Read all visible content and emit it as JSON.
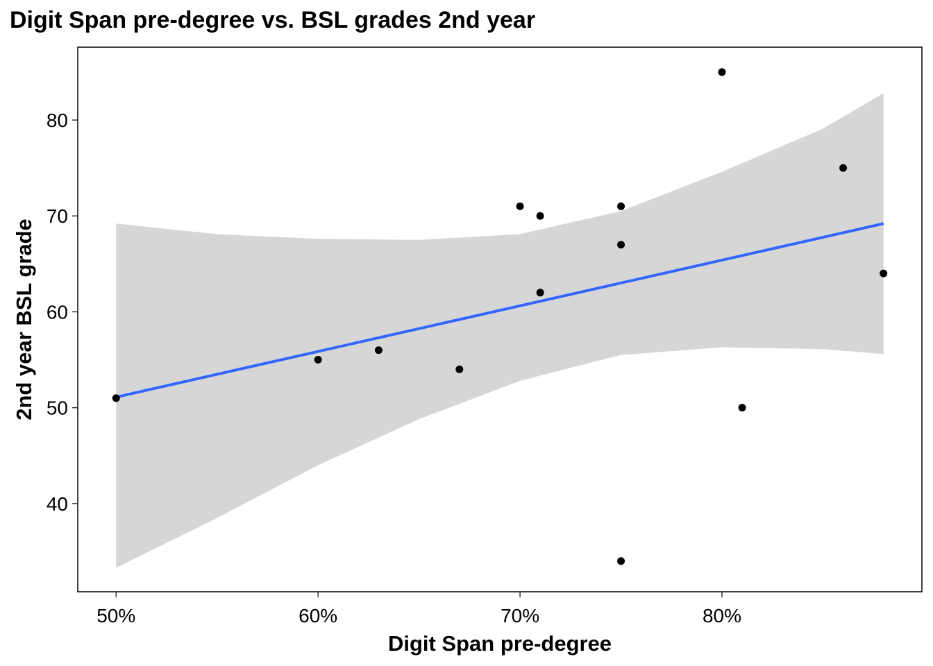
{
  "chart_data": {
    "type": "scatter",
    "title": "Digit Span pre-degree vs. BSL grades 2nd year",
    "xlabel": "Digit Span pre-degree",
    "ylabel": "2nd year BSL grade",
    "xlim": [
      0.481,
      0.899
    ],
    "ylim": [
      30.8,
      87.6
    ],
    "x_ticks": [
      0.5,
      0.6,
      0.7,
      0.8
    ],
    "x_tick_labels": [
      "50%",
      "60%",
      "70%",
      "80%"
    ],
    "y_ticks": [
      40,
      50,
      60,
      70,
      80
    ],
    "y_tick_labels": [
      "40",
      "50",
      "60",
      "70",
      "80"
    ],
    "grid": false,
    "point_color": "#000000",
    "line_color": "#3366FF",
    "band_color": "#D6D6D6",
    "points": [
      {
        "x": 0.5,
        "y": 51
      },
      {
        "x": 0.6,
        "y": 55
      },
      {
        "x": 0.63,
        "y": 56
      },
      {
        "x": 0.67,
        "y": 54
      },
      {
        "x": 0.7,
        "y": 71
      },
      {
        "x": 0.71,
        "y": 70
      },
      {
        "x": 0.71,
        "y": 62
      },
      {
        "x": 0.75,
        "y": 71
      },
      {
        "x": 0.75,
        "y": 67
      },
      {
        "x": 0.75,
        "y": 34
      },
      {
        "x": 0.8,
        "y": 85
      },
      {
        "x": 0.81,
        "y": 50
      },
      {
        "x": 0.86,
        "y": 75
      },
      {
        "x": 0.88,
        "y": 64
      }
    ],
    "fit_line": {
      "x": [
        0.5,
        0.88
      ],
      "y": [
        51.1,
        69.2
      ]
    },
    "confidence_band": [
      {
        "x": 0.5,
        "lower": 33.3,
        "upper": 69.2
      },
      {
        "x": 0.55,
        "lower": 38.5,
        "upper": 68.1
      },
      {
        "x": 0.6,
        "lower": 44.0,
        "upper": 67.6
      },
      {
        "x": 0.65,
        "lower": 48.8,
        "upper": 67.5
      },
      {
        "x": 0.7,
        "lower": 52.8,
        "upper": 68.1
      },
      {
        "x": 0.75,
        "lower": 55.5,
        "upper": 70.5
      },
      {
        "x": 0.8,
        "lower": 56.3,
        "upper": 74.6
      },
      {
        "x": 0.85,
        "lower": 56.1,
        "upper": 79.1
      },
      {
        "x": 0.88,
        "lower": 55.6,
        "upper": 82.8
      }
    ]
  }
}
